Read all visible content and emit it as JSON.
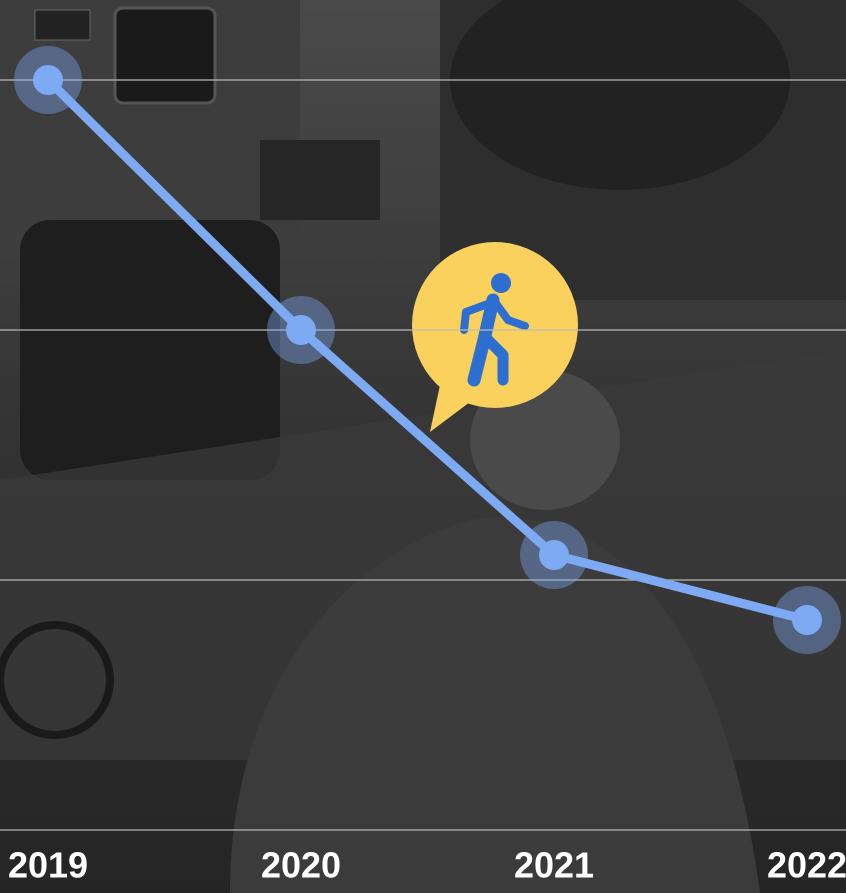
{
  "chart_data": {
    "type": "line",
    "categories": [
      "2019",
      "2020",
      "2021",
      "2022"
    ],
    "series": [
      {
        "color": "#7daaf2",
        "values": [
          3,
          2,
          1.1,
          0.84
        ]
      }
    ],
    "ylim": [
      0,
      3
    ],
    "yticks": [
      0,
      1,
      2,
      3
    ],
    "grid": true
  }
}
